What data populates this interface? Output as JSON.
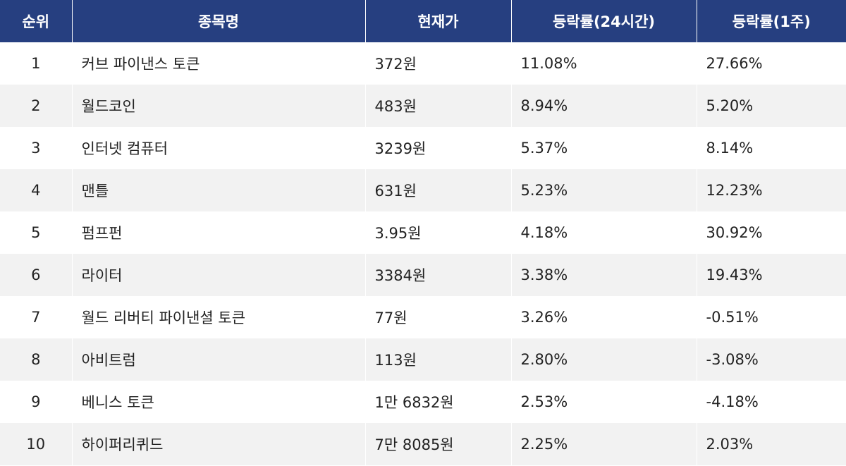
{
  "colors": {
    "header_bg": "#263f80",
    "header_text": "#ffffff",
    "stripe": "#f2f2f2"
  },
  "chart_data": {
    "type": "table",
    "columns": [
      "순위",
      "종목명",
      "현재가",
      "등락률(24시간)",
      "등락률(1주)"
    ],
    "rows": [
      [
        "1",
        "커브 파이낸스 토큰",
        "372원",
        "11.08%",
        "27.66%"
      ],
      [
        "2",
        "월드코인",
        "483원",
        "8.94%",
        "5.20%"
      ],
      [
        "3",
        "인터넷 컴퓨터",
        "3239원",
        "5.37%",
        "8.14%"
      ],
      [
        "4",
        "맨틀",
        "631원",
        "5.23%",
        "12.23%"
      ],
      [
        "5",
        "펌프펀",
        "3.95원",
        "4.18%",
        "30.92%"
      ],
      [
        "6",
        "라이터",
        "3384원",
        "3.38%",
        "19.43%"
      ],
      [
        "7",
        "월드 리버티 파이낸셜 토큰",
        "77원",
        "3.26%",
        "-0.51%"
      ],
      [
        "8",
        "아비트럼",
        "113원",
        "2.80%",
        "-3.08%"
      ],
      [
        "9",
        "베니스 토큰",
        "1만 6832원",
        "2.53%",
        "-4.18%"
      ],
      [
        "10",
        "하이퍼리퀴드",
        "7만 8085원",
        "2.25%",
        "2.03%"
      ]
    ]
  }
}
